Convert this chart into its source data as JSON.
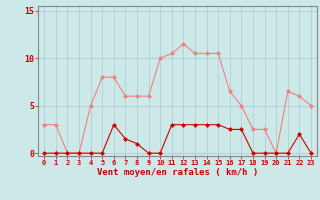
{
  "x": [
    0,
    1,
    2,
    3,
    4,
    5,
    6,
    7,
    8,
    9,
    10,
    11,
    12,
    13,
    14,
    15,
    16,
    17,
    18,
    19,
    20,
    21,
    22,
    23
  ],
  "rafales": [
    3,
    3,
    0,
    0,
    5,
    8,
    8,
    6,
    6,
    6,
    10,
    10.5,
    11.5,
    10.5,
    10.5,
    10.5,
    6.5,
    5,
    2.5,
    2.5,
    0,
    6.5,
    6,
    5
  ],
  "moyen": [
    0,
    0,
    0,
    0,
    0,
    0,
    3,
    1.5,
    1,
    0,
    0,
    3,
    3,
    3,
    3,
    3,
    2.5,
    2.5,
    0,
    0,
    0,
    0,
    2,
    0
  ],
  "line_color_rafales": "#f08080",
  "line_color_moyen": "#cc0000",
  "bg_color": "#cce8e8",
  "grid_color": "#aacccc",
  "xlabel": "Vent moyen/en rafales ( km/h )",
  "xlabel_color": "#cc0000",
  "tick_color": "#cc0000",
  "ytick_labels": [
    "0",
    "5",
    "10",
    "15"
  ],
  "ytick_vals": [
    0,
    5,
    10,
    15
  ],
  "ylim": [
    -0.3,
    15.5
  ],
  "xlim": [
    -0.5,
    23.5
  ]
}
